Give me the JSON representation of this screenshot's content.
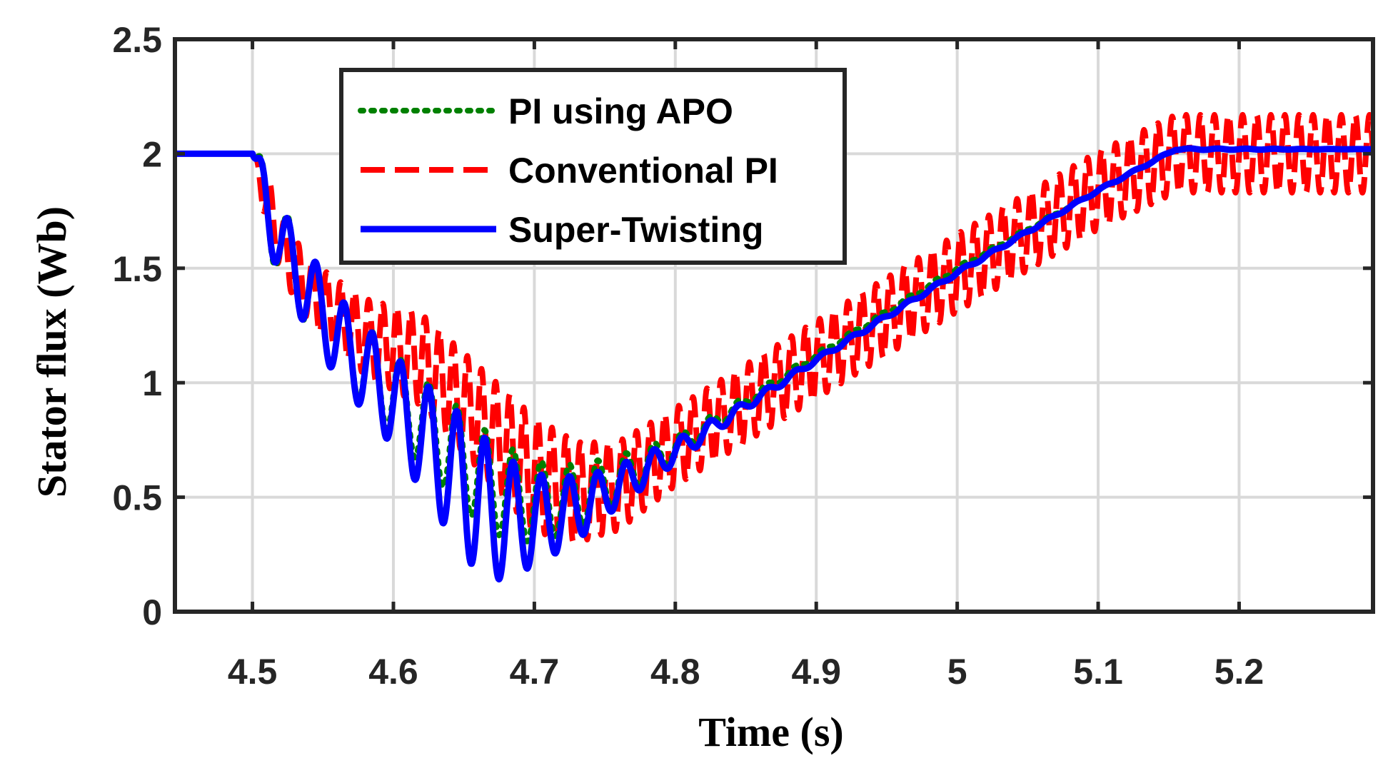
{
  "chart_data": {
    "type": "line",
    "title": "",
    "xlabel": "Time (s)",
    "ylabel": "Stator flux (Wb)",
    "xlim": [
      4.445,
      5.295
    ],
    "ylim": [
      0,
      2.5
    ],
    "x_ticks": [
      4.5,
      4.6,
      4.7,
      4.8,
      4.9,
      5,
      5.1,
      5.2
    ],
    "x_tick_labels": [
      "4.5",
      "4.6",
      "4.7",
      "4.8",
      "4.9",
      "5",
      "5.1",
      "5.2"
    ],
    "y_ticks": [
      0,
      0.5,
      1,
      1.5,
      2,
      2.5
    ],
    "y_tick_labels": [
      "0",
      "0.5",
      "1",
      "1.5",
      "2",
      "2.5"
    ],
    "grid": true,
    "legend_position": "top-left",
    "series": [
      {
        "name": "PI using APO",
        "color": "#008000",
        "style": "dotted",
        "base": [
          [
            4.445,
            2.0
          ],
          [
            4.5,
            2.0
          ],
          [
            4.52,
            1.6
          ],
          [
            4.56,
            1.2
          ],
          [
            4.6,
            0.95
          ],
          [
            4.64,
            0.72
          ],
          [
            4.67,
            0.55
          ],
          [
            4.7,
            0.48
          ],
          [
            4.73,
            0.5
          ],
          [
            4.76,
            0.58
          ],
          [
            4.8,
            0.72
          ],
          [
            4.85,
            0.92
          ],
          [
            4.9,
            1.12
          ],
          [
            5.0,
            1.5
          ],
          [
            5.1,
            1.84
          ],
          [
            5.155,
            2.02
          ],
          [
            5.295,
            2.02
          ]
        ],
        "oscillation": [
          [
            4.445,
            0
          ],
          [
            4.5,
            0
          ],
          [
            4.51,
            0.18
          ],
          [
            4.6,
            0.18
          ],
          [
            4.66,
            0.22
          ],
          [
            4.7,
            0.18
          ],
          [
            4.8,
            0.05
          ],
          [
            4.85,
            0.02
          ],
          [
            4.9,
            0.01
          ],
          [
            5.295,
            0
          ]
        ],
        "osc_period": 0.02
      },
      {
        "name": "Conventional PI",
        "color": "#ff0000",
        "style": "dashed",
        "base": [
          [
            4.445,
            2.0
          ],
          [
            4.5,
            2.0
          ],
          [
            4.52,
            1.6
          ],
          [
            4.54,
            1.4
          ],
          [
            4.58,
            1.2
          ],
          [
            4.62,
            1.1
          ],
          [
            4.66,
            0.85
          ],
          [
            4.7,
            0.6
          ],
          [
            4.73,
            0.52
          ],
          [
            4.76,
            0.55
          ],
          [
            4.8,
            0.72
          ],
          [
            4.9,
            1.1
          ],
          [
            5.0,
            1.48
          ],
          [
            5.1,
            1.84
          ],
          [
            5.155,
            2.0
          ],
          [
            5.295,
            2.0
          ]
        ],
        "oscillation": [
          [
            4.445,
            0
          ],
          [
            4.5,
            0
          ],
          [
            4.51,
            0.12
          ],
          [
            4.56,
            0.15
          ],
          [
            4.62,
            0.2
          ],
          [
            4.7,
            0.25
          ],
          [
            4.75,
            0.2
          ],
          [
            4.8,
            0.17
          ],
          [
            5.295,
            0.17
          ]
        ],
        "osc_period": 0.01
      },
      {
        "name": "Super-Twisting",
        "color": "#0000ff",
        "style": "solid",
        "base": [
          [
            4.445,
            2.0
          ],
          [
            4.5,
            2.0
          ],
          [
            4.52,
            1.6
          ],
          [
            4.56,
            1.2
          ],
          [
            4.6,
            0.92
          ],
          [
            4.64,
            0.62
          ],
          [
            4.67,
            0.42
          ],
          [
            4.7,
            0.4
          ],
          [
            4.73,
            0.45
          ],
          [
            4.76,
            0.55
          ],
          [
            4.8,
            0.7
          ],
          [
            4.85,
            0.9
          ],
          [
            4.9,
            1.1
          ],
          [
            5.0,
            1.48
          ],
          [
            5.1,
            1.84
          ],
          [
            5.155,
            2.02
          ],
          [
            5.295,
            2.02
          ]
        ],
        "oscillation": [
          [
            4.445,
            0
          ],
          [
            4.5,
            0
          ],
          [
            4.51,
            0.16
          ],
          [
            4.6,
            0.2
          ],
          [
            4.66,
            0.32
          ],
          [
            4.7,
            0.2
          ],
          [
            4.75,
            0.1
          ],
          [
            4.8,
            0.05
          ],
          [
            4.85,
            0.02
          ],
          [
            4.9,
            0.01
          ],
          [
            5.295,
            0
          ]
        ],
        "osc_period": 0.02
      }
    ]
  }
}
